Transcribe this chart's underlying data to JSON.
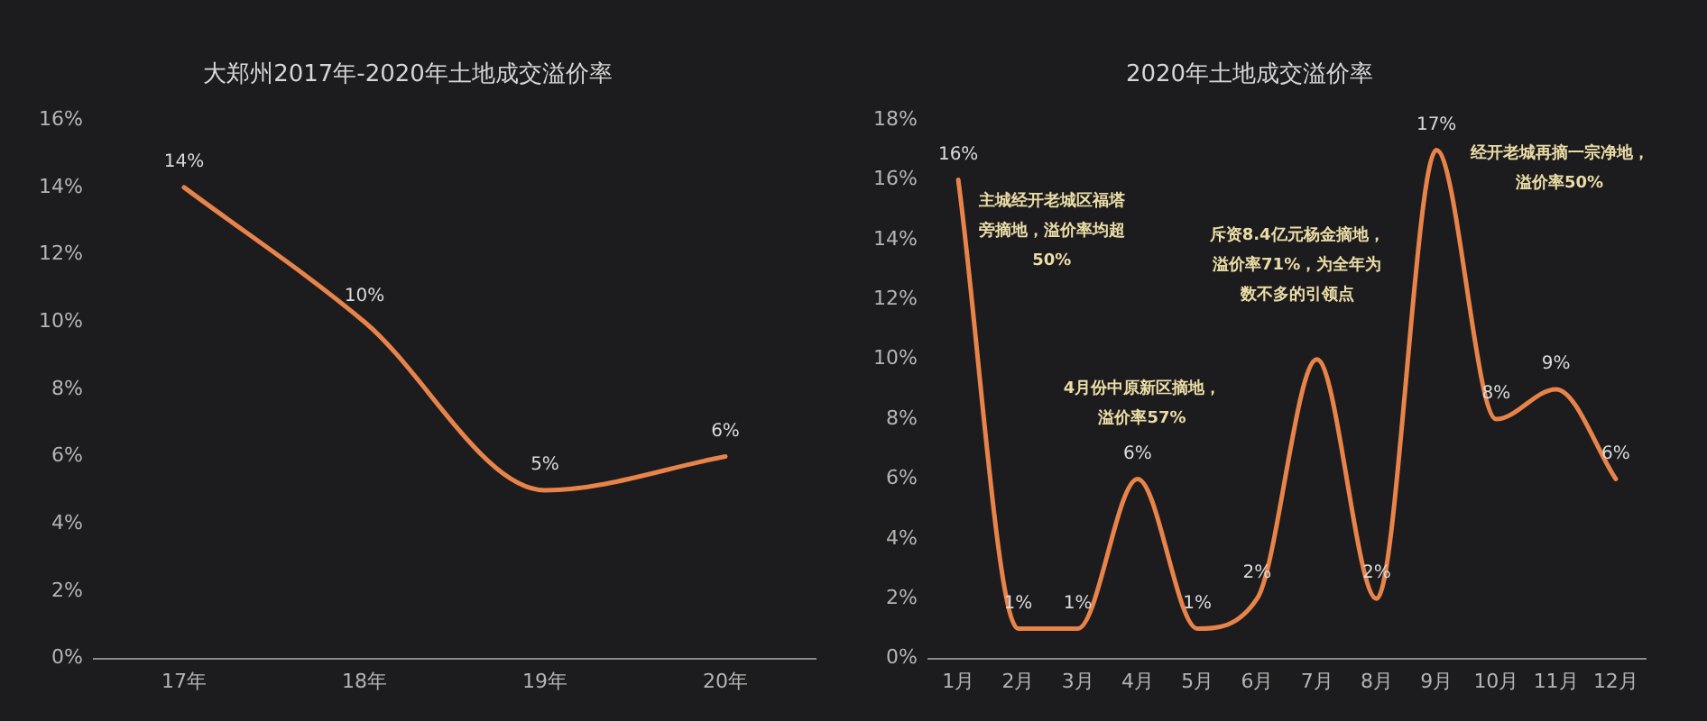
{
  "chart_data": [
    {
      "type": "line",
      "title": "大郑州2017年-2020年土地成交溢价率",
      "categories": [
        "17年",
        "18年",
        "19年",
        "20年"
      ],
      "series": [
        {
          "color": "#e8834a",
          "values": [
            14,
            10,
            5,
            6
          ],
          "value_labels": [
            "14%",
            "10%",
            "5%",
            "6%"
          ]
        }
      ],
      "ylim": [
        0,
        16
      ],
      "yticks": [
        {
          "value": 0,
          "label": "0%"
        },
        {
          "value": 2,
          "label": "2%"
        },
        {
          "value": 4,
          "label": "4%"
        },
        {
          "value": 6,
          "label": "6%"
        },
        {
          "value": 8,
          "label": "8%"
        },
        {
          "value": 10,
          "label": "10%"
        },
        {
          "value": 12,
          "label": "12%"
        },
        {
          "value": 14,
          "label": "14%"
        },
        {
          "value": 16,
          "label": "16%"
        }
      ],
      "marker": "none"
    },
    {
      "type": "line",
      "title": "2020年土地成交溢价率",
      "categories": [
        "1月",
        "2月",
        "3月",
        "4月",
        "5月",
        "6月",
        "7月",
        "8月",
        "9月",
        "10月",
        "11月",
        "12月"
      ],
      "series": [
        {
          "color": "#e8834a",
          "values": [
            16,
            1,
            1,
            6,
            1,
            2,
            10,
            2,
            17,
            8,
            9,
            6
          ],
          "value_labels": [
            "16%",
            "1%",
            "1%",
            "6%",
            "1%",
            "2%",
            null,
            "2%",
            "17%",
            "8%",
            "9%",
            "6%"
          ]
        }
      ],
      "ylim": [
        0,
        18
      ],
      "yticks": [
        {
          "value": 0,
          "label": "0%"
        },
        {
          "value": 2,
          "label": "2%"
        },
        {
          "value": 4,
          "label": "4%"
        },
        {
          "value": 6,
          "label": "6%"
        },
        {
          "value": 8,
          "label": "8%"
        },
        {
          "value": 10,
          "label": "10%"
        },
        {
          "value": 12,
          "label": "12%"
        },
        {
          "value": 14,
          "label": "14%"
        },
        {
          "value": 16,
          "label": "16%"
        },
        {
          "value": 18,
          "label": "18%"
        }
      ],
      "marker": "none",
      "annotations": [
        "主城经开老城区福塔旁摘地，溢价率均超50%",
        "斥资8.4亿元杨金摘地，溢价率71%，为全年为数不多的引领点",
        "4月份中原新区摘地，溢价率57%",
        "经开老城再摘一宗净地，溢价率50%"
      ]
    }
  ]
}
